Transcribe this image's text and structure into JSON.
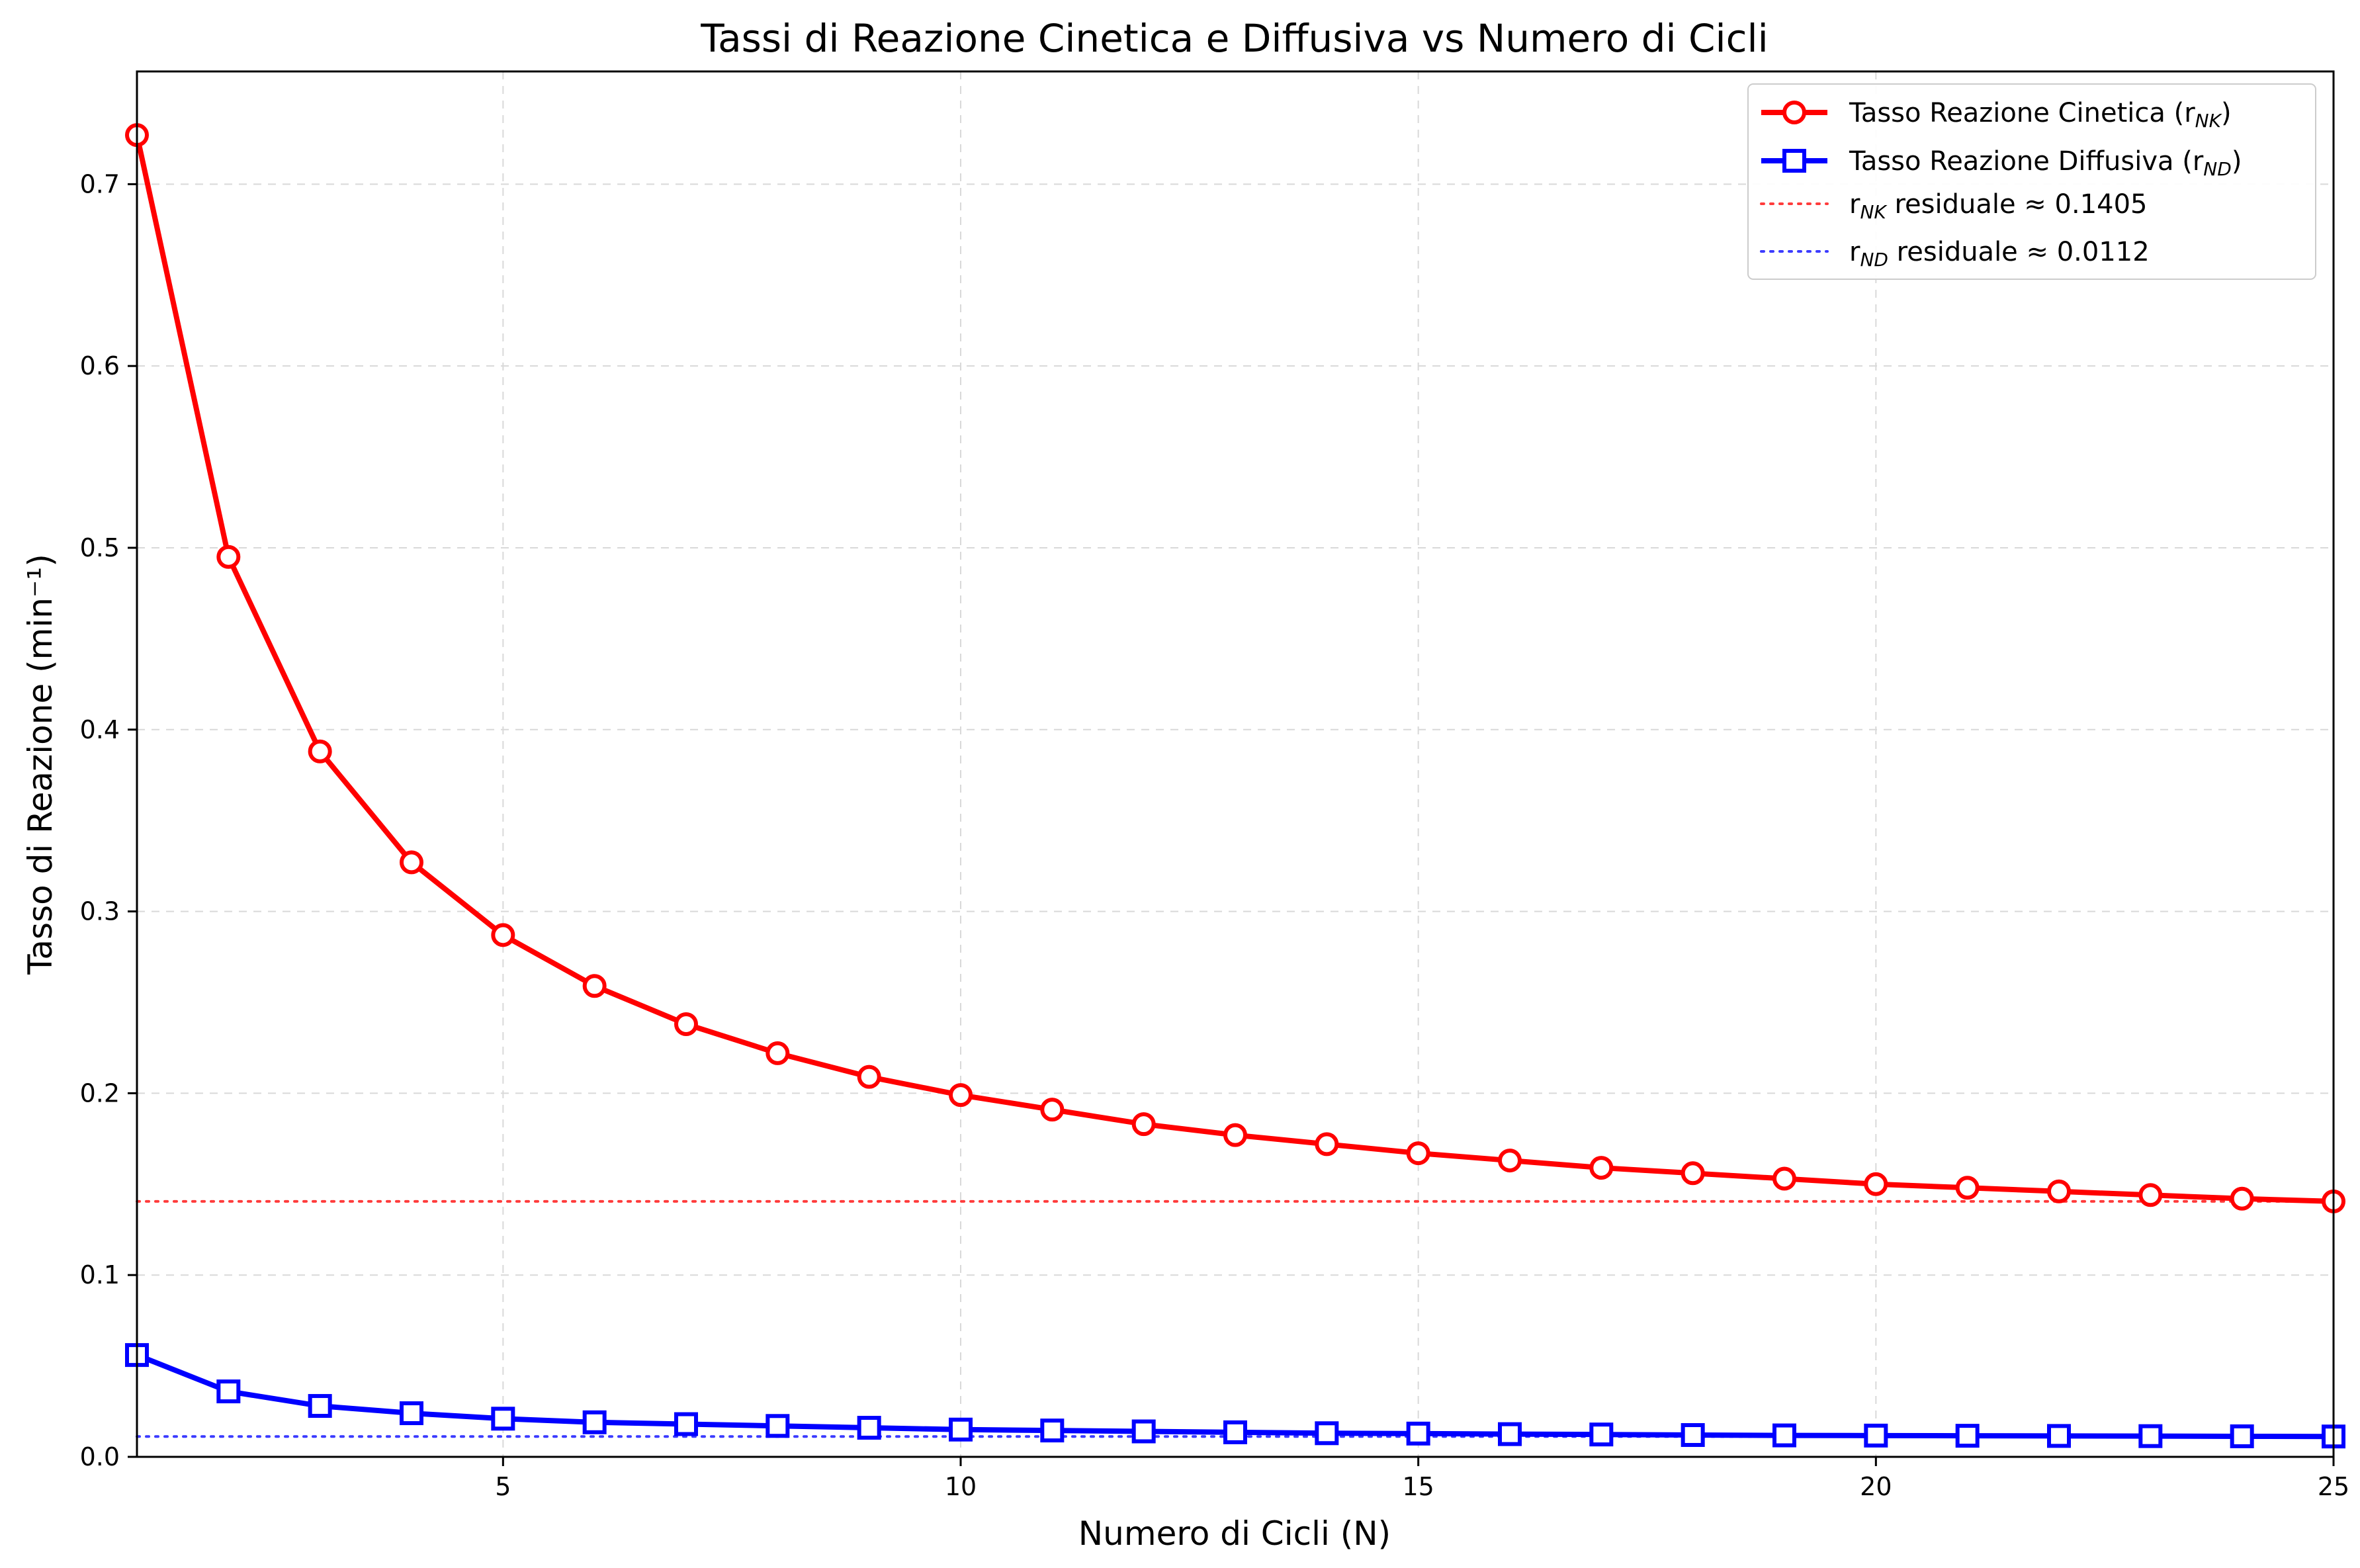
{
  "chart_data": {
    "type": "line",
    "title": "Tassi di Reazione Cinetica e Diffusiva vs Numero di Cicli",
    "xlabel": "Numero di Cicli (N)",
    "ylabel": "Tasso di Reazione (min⁻¹)",
    "xlim": [
      1,
      25
    ],
    "ylim": [
      0,
      0.762
    ],
    "xticks": [
      5,
      10,
      15,
      20,
      25
    ],
    "yticks": [
      0.0,
      0.1,
      0.2,
      0.3,
      0.4,
      0.5,
      0.6,
      0.7
    ],
    "grid": true,
    "legend_position": "top-right",
    "x": [
      1,
      2,
      3,
      4,
      5,
      6,
      7,
      8,
      9,
      10,
      11,
      12,
      13,
      14,
      15,
      16,
      17,
      18,
      19,
      20,
      21,
      22,
      23,
      24,
      25
    ],
    "series": [
      {
        "name": "Tasso Reazione Cinetica (r_NK)",
        "legend_main": "Tasso Reazione Cinetica (r",
        "legend_sub": "NK",
        "legend_end": ")",
        "color": "#ff0000",
        "marker": "circle",
        "values": [
          0.727,
          0.495,
          0.388,
          0.327,
          0.287,
          0.259,
          0.238,
          0.222,
          0.209,
          0.199,
          0.191,
          0.183,
          0.177,
          0.172,
          0.167,
          0.163,
          0.159,
          0.156,
          0.153,
          0.15,
          0.148,
          0.146,
          0.144,
          0.142,
          0.1405
        ]
      },
      {
        "name": "Tasso Reazione Diffusiva (r_ND)",
        "legend_main": "Tasso Reazione Diffusiva (r",
        "legend_sub": "ND",
        "legend_end": ")",
        "color": "#0000ff",
        "marker": "square",
        "values": [
          0.056,
          0.036,
          0.028,
          0.024,
          0.021,
          0.019,
          0.018,
          0.017,
          0.016,
          0.015,
          0.0145,
          0.014,
          0.0135,
          0.013,
          0.0128,
          0.0125,
          0.0123,
          0.012,
          0.0118,
          0.0117,
          0.0116,
          0.0115,
          0.0114,
          0.0113,
          0.0112
        ]
      }
    ],
    "reference_lines": [
      {
        "name": "r_NK residuale ≈ 0.1405",
        "legend_main": "r",
        "legend_sub": "NK",
        "legend_end": " residuale ≈ 0.1405",
        "value": 0.1405,
        "color": "#ff3b3b"
      },
      {
        "name": "r_ND residuale ≈ 0.0112",
        "legend_main": "r",
        "legend_sub": "ND",
        "legend_end": " residuale ≈ 0.0112",
        "value": 0.0112,
        "color": "#3b3bff"
      }
    ]
  }
}
